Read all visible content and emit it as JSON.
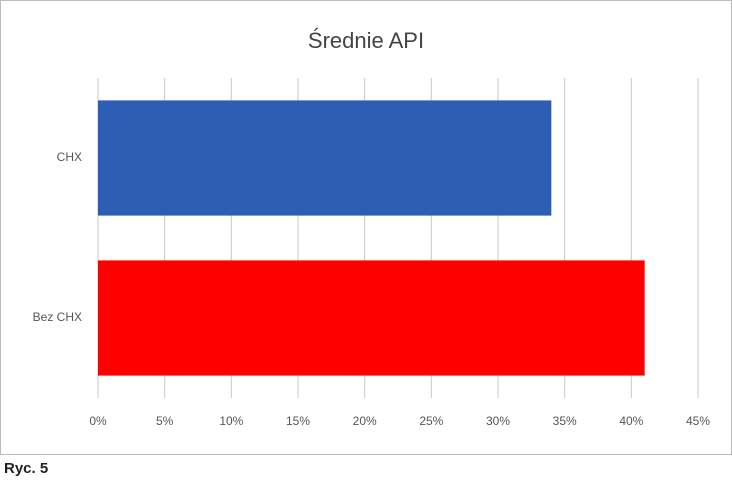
{
  "chart_data": {
    "type": "hbar",
    "title": "Średnie API",
    "categories": [
      "CHX",
      "Bez CHX"
    ],
    "values": [
      34,
      41
    ],
    "colors": [
      "#2e5eb4",
      "#ff0000"
    ],
    "xlim": [
      0,
      45
    ],
    "xticks": [
      {
        "value": 0,
        "label": "0%"
      },
      {
        "value": 5,
        "label": "5%"
      },
      {
        "value": 10,
        "label": "10%"
      },
      {
        "value": 15,
        "label": "15%"
      },
      {
        "value": 20,
        "label": "20%"
      },
      {
        "value": 25,
        "label": "25%"
      },
      {
        "value": 30,
        "label": "30%"
      },
      {
        "value": 35,
        "label": "35%"
      },
      {
        "value": 40,
        "label": "40%"
      },
      {
        "value": 45,
        "label": "45%"
      }
    ],
    "grid": true
  },
  "caption": "Ryc. 5"
}
